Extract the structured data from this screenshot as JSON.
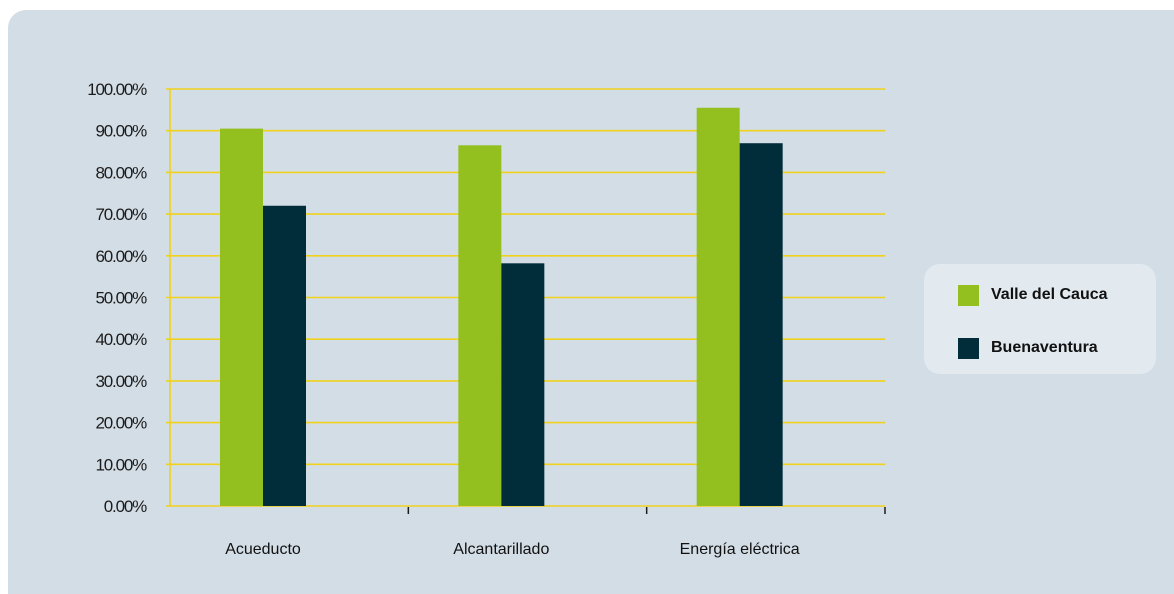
{
  "chart_data": {
    "type": "bar",
    "categories": [
      "Acueducto",
      "Alcantarillado",
      "Energía eléctrica"
    ],
    "series": [
      {
        "name": "Valle del Cauca",
        "values": [
          90.5,
          86.5,
          95.5
        ],
        "color": "#93bf1f"
      },
      {
        "name": "Buenaventura",
        "values": [
          72.0,
          58.2,
          87.0
        ],
        "color": "#012c3a"
      }
    ],
    "yticks": [
      "0.00%",
      "10.00%",
      "20.00%",
      "30.00%",
      "40.00%",
      "50.00%",
      "60.00%",
      "70.00%",
      "80.00%",
      "90.00%",
      "100.00%"
    ],
    "ylim": [
      0,
      100
    ],
    "grid": true,
    "grid_color": "#f0d21c",
    "legend_position": "right",
    "title": "",
    "xlabel": "",
    "ylabel": ""
  }
}
